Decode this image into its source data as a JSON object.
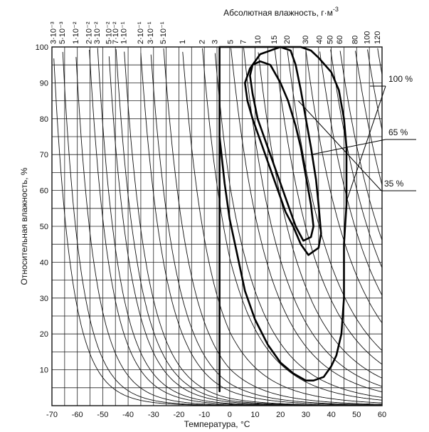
{
  "chart_data": {
    "type": "line",
    "title": "",
    "xlabel": "Температура, °С",
    "ylabel": "Относительная влажность, %",
    "top_axis_label": "Абсолютная влажность, г·м",
    "top_axis_label_exponent": "-3",
    "xlim": [
      -70,
      60
    ],
    "ylim": [
      0,
      100
    ],
    "x_ticks": [
      -70,
      -60,
      -50,
      -40,
      -30,
      -20,
      -10,
      0,
      10,
      20,
      30,
      40,
      50,
      60
    ],
    "x_tick_labels": [
      "-70",
      "-60",
      "-50",
      "-40",
      "-30",
      "-20",
      "-10",
      "0",
      "10",
      "20",
      "30",
      "40",
      "50",
      "60"
    ],
    "y_ticks": [
      0,
      10,
      20,
      30,
      40,
      50,
      60,
      70,
      80,
      90,
      100
    ],
    "y_tick_labels": [
      "",
      "10",
      "20",
      "30",
      "40",
      "50",
      "60",
      "70",
      "80",
      "90",
      "100"
    ],
    "grid": true,
    "absolute_humidity_isolines": [
      {
        "label": "3·10⁻³",
        "value": 0.003
      },
      {
        "label": "5·10⁻³",
        "value": 0.005
      },
      {
        "label": "1·10⁻²",
        "value": 0.01
      },
      {
        "label": "2·10⁻²",
        "value": 0.02
      },
      {
        "label": "3·10⁻²",
        "value": 0.03
      },
      {
        "label": "5·10⁻²",
        "value": 0.05
      },
      {
        "label": "7·10⁻²",
        "value": 0.07
      },
      {
        "label": "1·10⁻¹",
        "value": 0.1
      },
      {
        "label": "2·10⁻¹",
        "value": 0.2
      },
      {
        "label": "3·10⁻¹",
        "value": 0.3
      },
      {
        "label": "5·10⁻¹",
        "value": 0.5
      },
      {
        "label": "1",
        "value": 1
      },
      {
        "label": "2",
        "value": 2
      },
      {
        "label": "3",
        "value": 3
      },
      {
        "label": "5",
        "value": 5
      },
      {
        "label": "7",
        "value": 7
      },
      {
        "label": "10",
        "value": 10
      },
      {
        "label": "15",
        "value": 15
      },
      {
        "label": "20",
        "value": 20
      },
      {
        "label": "30",
        "value": 30
      },
      {
        "label": "40",
        "value": 40
      },
      {
        "label": "50",
        "value": 50
      },
      {
        "label": "60",
        "value": 60
      },
      {
        "label": "80",
        "value": 80
      },
      {
        "label": "100",
        "value": 100
      },
      {
        "label": "120",
        "value": 120
      }
    ],
    "comfort_zones": [
      {
        "name": "100 %",
        "label_at": [
          46,
          57
        ],
        "points": [
          [
            -4,
            4
          ],
          [
            -4,
            100
          ],
          [
            -2,
            100
          ],
          [
            0,
            101
          ],
          [
            28,
            101
          ],
          [
            32,
            99
          ],
          [
            35,
            97
          ],
          [
            40,
            93
          ],
          [
            43,
            88
          ],
          [
            45,
            80
          ],
          [
            46,
            72
          ],
          [
            46,
            64
          ],
          [
            46,
            56
          ],
          [
            45,
            45
          ],
          [
            45,
            30
          ],
          [
            44,
            20
          ],
          [
            42,
            14
          ],
          [
            40,
            11
          ],
          [
            37,
            8
          ],
          [
            33,
            7
          ],
          [
            30,
            7
          ],
          [
            25,
            9
          ],
          [
            20,
            12
          ],
          [
            15,
            17
          ],
          [
            10,
            24
          ],
          [
            6,
            32
          ],
          [
            3,
            42
          ],
          [
            0,
            52
          ],
          [
            -2,
            62
          ],
          [
            -4,
            75
          ],
          [
            -4,
            88
          ]
        ]
      },
      {
        "name": "65 %",
        "label_at": [
          32,
          70
        ],
        "points": [
          [
            6,
            90
          ],
          [
            8,
            94
          ],
          [
            12,
            98
          ],
          [
            20,
            100
          ],
          [
            24,
            99
          ],
          [
            26,
            95
          ],
          [
            28,
            88
          ],
          [
            30,
            80
          ],
          [
            32,
            72
          ],
          [
            34,
            63
          ],
          [
            35,
            56
          ],
          [
            36,
            48
          ],
          [
            35,
            44
          ],
          [
            31,
            42
          ],
          [
            28,
            45
          ],
          [
            25,
            50
          ],
          [
            22,
            54
          ],
          [
            19,
            60
          ],
          [
            16,
            66
          ],
          [
            12,
            74
          ],
          [
            9,
            80
          ],
          [
            7,
            85
          ]
        ]
      },
      {
        "name": "35 %",
        "label_at": [
          27,
          85
        ],
        "points": [
          [
            8,
            92
          ],
          [
            9,
            95
          ],
          [
            12,
            96
          ],
          [
            16,
            95
          ],
          [
            20,
            90
          ],
          [
            23,
            85
          ],
          [
            26,
            78
          ],
          [
            28,
            72
          ],
          [
            30,
            64
          ],
          [
            32,
            56
          ],
          [
            33,
            50
          ],
          [
            32,
            47
          ],
          [
            29,
            46
          ],
          [
            26,
            50
          ],
          [
            23,
            56
          ],
          [
            20,
            62
          ],
          [
            17,
            68
          ],
          [
            14,
            74
          ],
          [
            11,
            80
          ],
          [
            9,
            87
          ]
        ]
      }
    ],
    "legend": "none"
  }
}
